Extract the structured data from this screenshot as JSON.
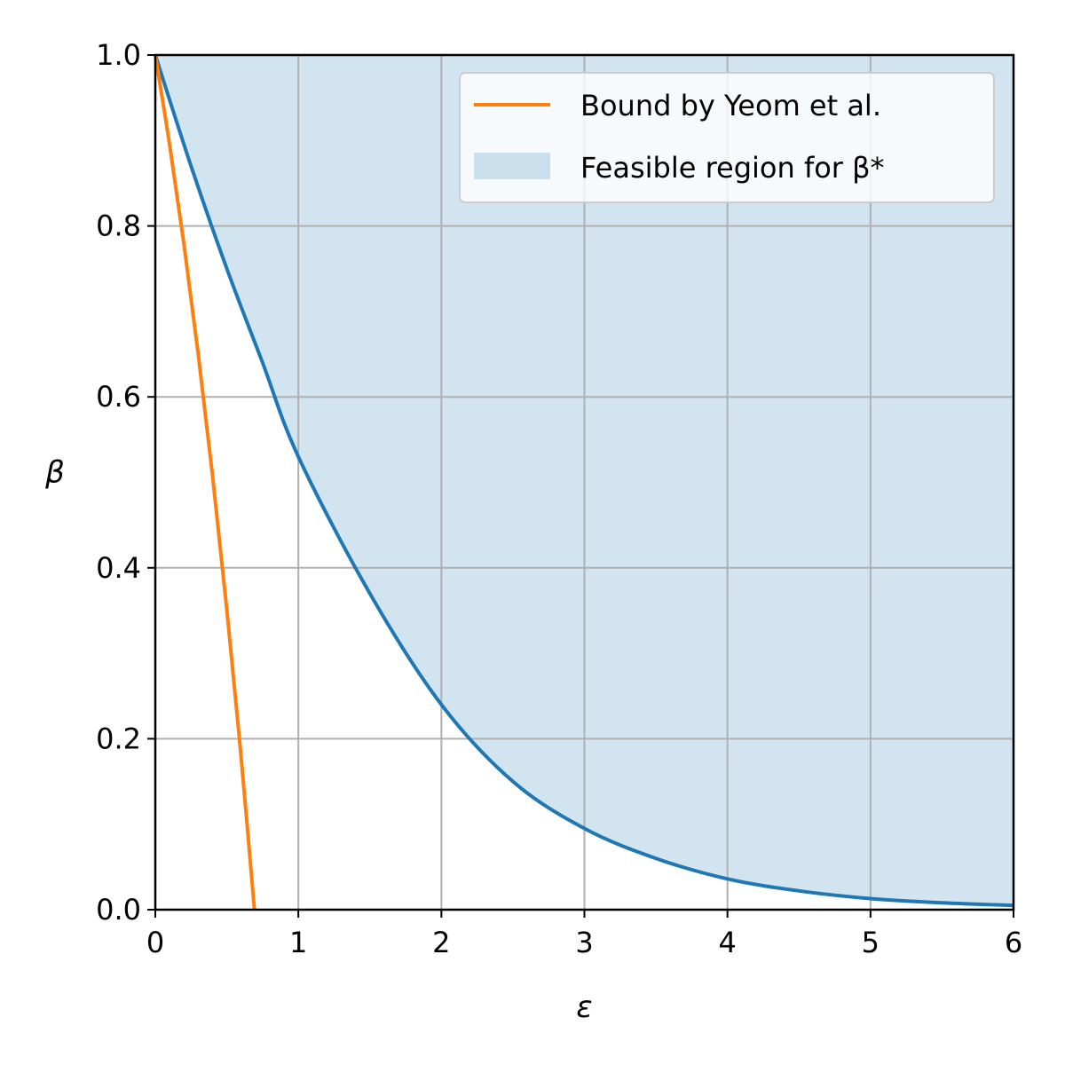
{
  "chart_data": {
    "type": "line",
    "xlabel": "ε",
    "ylabel": "β",
    "xlim": [
      0,
      6
    ],
    "ylim": [
      0,
      1
    ],
    "x_ticks": [
      "0",
      "1",
      "2",
      "3",
      "4",
      "5",
      "6"
    ],
    "y_ticks": [
      "0.0",
      "0.2",
      "0.4",
      "0.6",
      "0.8",
      "1.0"
    ],
    "grid": true,
    "legend_position": "top-right",
    "series": [
      {
        "name": "Bound by Yeom et al.",
        "kind": "line",
        "color": "#ff7f0e",
        "x": [
          0,
          0.1,
          0.2,
          0.3,
          0.4,
          0.5,
          0.6,
          0.693
        ],
        "y": [
          1.0,
          0.895,
          0.779,
          0.65,
          0.508,
          0.351,
          0.178,
          0.0
        ]
      },
      {
        "name": "",
        "kind": "line",
        "color": "#1f77b4",
        "x": [
          0,
          0.25,
          0.5,
          0.75,
          1.0,
          1.5,
          2.0,
          2.5,
          3.0,
          3.5,
          4.0,
          4.5,
          5.0,
          5.5,
          6.0
        ],
        "y": [
          1.0,
          0.87,
          0.75,
          0.64,
          0.53,
          0.37,
          0.24,
          0.15,
          0.095,
          0.06,
          0.036,
          0.022,
          0.013,
          0.008,
          0.005
        ]
      },
      {
        "name": "Feasible region for β*",
        "kind": "fill_above",
        "color": "#1f77b4",
        "opacity": 0.2
      }
    ]
  }
}
